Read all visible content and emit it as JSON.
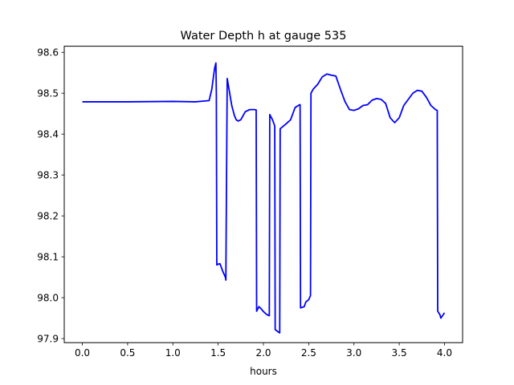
{
  "chart_data": {
    "type": "line",
    "title": "Water Depth h at gauge 535",
    "xlabel": "hours",
    "ylabel": "",
    "xlim": [
      -0.2,
      4.2
    ],
    "ylim": [
      97.89,
      98.615
    ],
    "xticks": [
      0.0,
      0.5,
      1.0,
      1.5,
      2.0,
      2.5,
      3.0,
      3.5,
      4.0
    ],
    "xtick_labels": [
      "0.0",
      "0.5",
      "1.0",
      "1.5",
      "2.0",
      "2.5",
      "3.0",
      "3.5",
      "4.0"
    ],
    "yticks": [
      97.9,
      98.0,
      98.1,
      98.2,
      98.3,
      98.4,
      98.5,
      98.6
    ],
    "ytick_labels": [
      "97.9",
      "98.0",
      "98.1",
      "98.2",
      "98.3",
      "98.4",
      "98.5",
      "98.6"
    ],
    "grid": false,
    "series": [
      {
        "color": "#0000ff",
        "x": [
          0.0,
          0.5,
          1.0,
          1.25,
          1.4,
          1.43,
          1.46,
          1.475,
          1.48,
          1.485,
          1.5,
          1.52,
          1.55,
          1.58,
          1.585,
          1.6,
          1.62,
          1.65,
          1.68,
          1.7,
          1.72,
          1.75,
          1.8,
          1.85,
          1.9,
          1.92,
          1.925,
          1.95,
          1.97,
          2.0,
          2.03,
          2.05,
          2.065,
          2.07,
          2.1,
          2.125,
          2.13,
          2.17,
          2.18,
          2.185,
          2.25,
          2.3,
          2.35,
          2.4,
          2.405,
          2.41,
          2.45,
          2.47,
          2.5,
          2.52,
          2.525,
          2.55,
          2.6,
          2.65,
          2.7,
          2.75,
          2.8,
          2.85,
          2.9,
          2.95,
          3.0,
          3.05,
          3.1,
          3.15,
          3.2,
          3.25,
          3.3,
          3.35,
          3.4,
          3.45,
          3.5,
          3.55,
          3.6,
          3.65,
          3.7,
          3.75,
          3.8,
          3.85,
          3.9,
          3.92,
          3.925,
          3.95,
          3.96,
          3.975,
          4.0
        ],
        "y": [
          98.479,
          98.479,
          98.48,
          98.479,
          98.482,
          98.51,
          98.56,
          98.574,
          98.5,
          98.08,
          98.082,
          98.083,
          98.065,
          98.05,
          98.043,
          98.536,
          98.51,
          98.47,
          98.445,
          98.435,
          98.432,
          98.435,
          98.455,
          98.46,
          98.46,
          98.459,
          97.967,
          97.978,
          97.974,
          97.966,
          97.96,
          97.957,
          97.956,
          98.448,
          98.435,
          98.42,
          97.922,
          97.915,
          97.914,
          98.413,
          98.425,
          98.435,
          98.465,
          98.472,
          98.472,
          97.975,
          97.978,
          97.99,
          97.995,
          98.005,
          98.5,
          98.51,
          98.522,
          98.54,
          98.547,
          98.544,
          98.542,
          98.51,
          98.48,
          98.46,
          98.458,
          98.462,
          98.47,
          98.472,
          98.483,
          98.487,
          98.485,
          98.475,
          98.44,
          98.428,
          98.44,
          98.47,
          98.485,
          98.5,
          98.507,
          98.505,
          98.49,
          98.47,
          98.46,
          98.458,
          97.967,
          97.958,
          97.95,
          97.955,
          97.963
        ]
      }
    ]
  }
}
